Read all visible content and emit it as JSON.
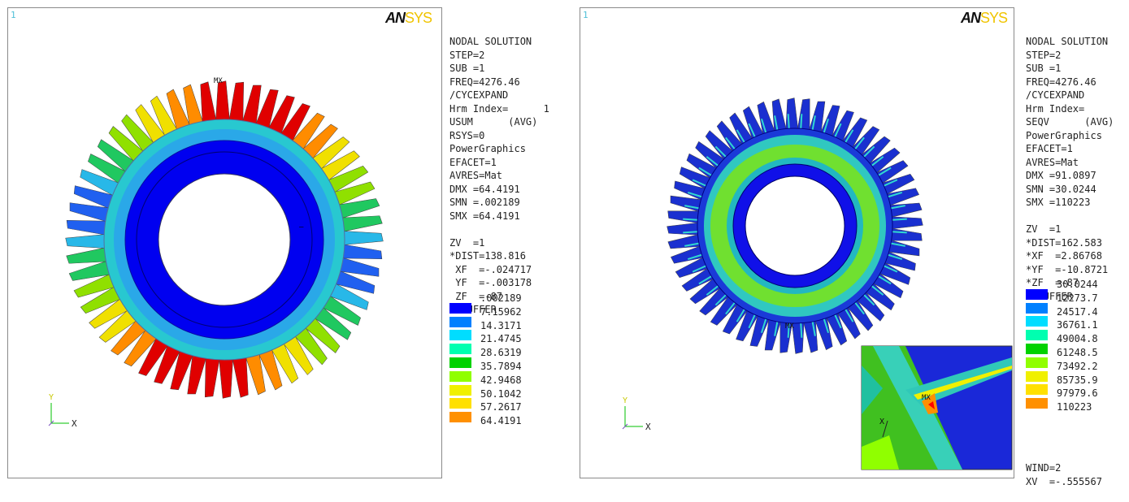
{
  "left": {
    "viewport_number": "1",
    "logo": {
      "an": "AN",
      "sys": "SYS"
    },
    "info_lines": [
      "NODAL SOLUTION",
      "STEP=2",
      "SUB =1",
      "FREQ=4276.46",
      "/CYCEXPAND",
      "Hrm Index=      1",
      "USUM      (AVG)",
      "RSYS=0",
      "PowerGraphics",
      "EFACET=1",
      "AVRES=Mat",
      "DMX =64.4191",
      "SMN =.002189",
      "SMX =64.4191",
      "",
      "ZV  =1",
      "*DIST=138.816",
      " XF  =-.024717",
      " YF  =-.003178",
      " ZF  =-87",
      "Z-BUFFER"
    ],
    "legend_values": [
      ".002189",
      "7.15962",
      "14.3171",
      "21.4745",
      "28.6319",
      "35.7894",
      "42.9468",
      "50.1042",
      "57.2617",
      "64.4191"
    ],
    "mx_label": "MX",
    "triad": {
      "y": "Y",
      "x": "X"
    }
  },
  "right": {
    "viewport_number": "1",
    "logo": {
      "an": "AN",
      "sys": "SYS"
    },
    "info_lines": [
      "NODAL SOLUTION",
      "STEP=2",
      "SUB =1",
      "FREQ=4276.46",
      "/CYCEXPAND",
      "Hrm Index=",
      "SEQV      (AVG)",
      "PowerGraphics",
      "EFACET=1",
      "AVRES=Mat",
      "DMX =91.0897",
      "SMN =30.0244",
      "SMX =110223",
      "",
      "ZV  =1",
      "*DIST=162.583",
      "*XF  =2.86768",
      "*YF  =-10.8721",
      "*ZF  =-87",
      "Z-BUFFER"
    ],
    "legend_values": [
      "30.0244",
      "12273.7",
      "24517.4",
      "36761.1",
      "49004.8",
      "61248.5",
      "73492.2",
      "85735.9",
      "97979.6",
      "110223"
    ],
    "footer_lines": [
      "WIND=2",
      "XV  =-.555567"
    ],
    "mx_label": "MX",
    "inset_mx_label": "MX",
    "inset_axis_label": "X",
    "triad": {
      "y": "Y",
      "x": "X"
    }
  },
  "legend_colors": [
    "#0000ff",
    "#0080ff",
    "#00ddff",
    "#00ffb0",
    "#00d200",
    "#90ff00",
    "#f0f000",
    "#ffe000",
    "#ff9000",
    "#ff0000"
  ]
}
